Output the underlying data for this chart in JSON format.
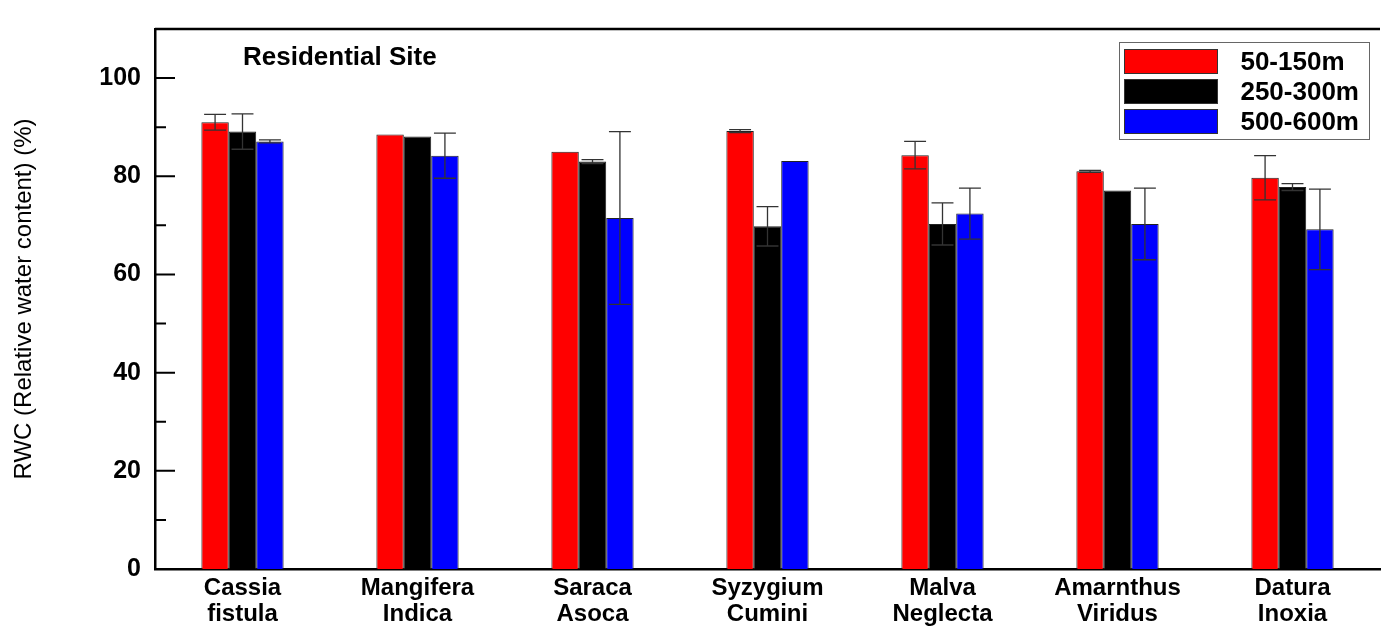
{
  "chart_data": {
    "type": "bar",
    "title": "Residential Site",
    "ylabel": "RWC (Relative water content) (%)",
    "categories": [
      "Cassia fistula",
      "Mangifera Indica",
      "Saraca Asoca",
      "Syzygium Cumini",
      "Malva Neglecta",
      "Amarnthus Viridus",
      "Datura Inoxia"
    ],
    "series": [
      {
        "name": "50-150m",
        "color": "#ff0000",
        "values": [
          91.0,
          88.5,
          85.0,
          89.2,
          84.3,
          81.0,
          79.7
        ],
        "errors": [
          1.6,
          null,
          null,
          0.3,
          2.8,
          0.2,
          4.5
        ]
      },
      {
        "name": "250-300m",
        "color": "#000000",
        "values": [
          89.1,
          88.1,
          83.0,
          69.8,
          70.3,
          77.1,
          77.8
        ],
        "errors": [
          3.6,
          null,
          0.4,
          4.0,
          4.3,
          null,
          0.7
        ]
      },
      {
        "name": "500-600m",
        "color": "#0000ff",
        "values": [
          87.1,
          84.2,
          71.5,
          83.1,
          72.4,
          70.3,
          69.2
        ],
        "errors": [
          0.3,
          4.6,
          17.6,
          null,
          5.2,
          7.3,
          8.2
        ]
      }
    ],
    "ylim": [
      0,
      110
    ],
    "yticks": [
      0,
      {
        "value": 10,
        "label": null
      },
      20,
      {
        "value": 30,
        "label": null
      },
      40,
      {
        "value": 50,
        "label": null
      },
      60,
      {
        "value": 70,
        "label": null
      },
      80,
      {
        "value": 90,
        "label": null
      },
      100
    ],
    "legend": "top right"
  }
}
